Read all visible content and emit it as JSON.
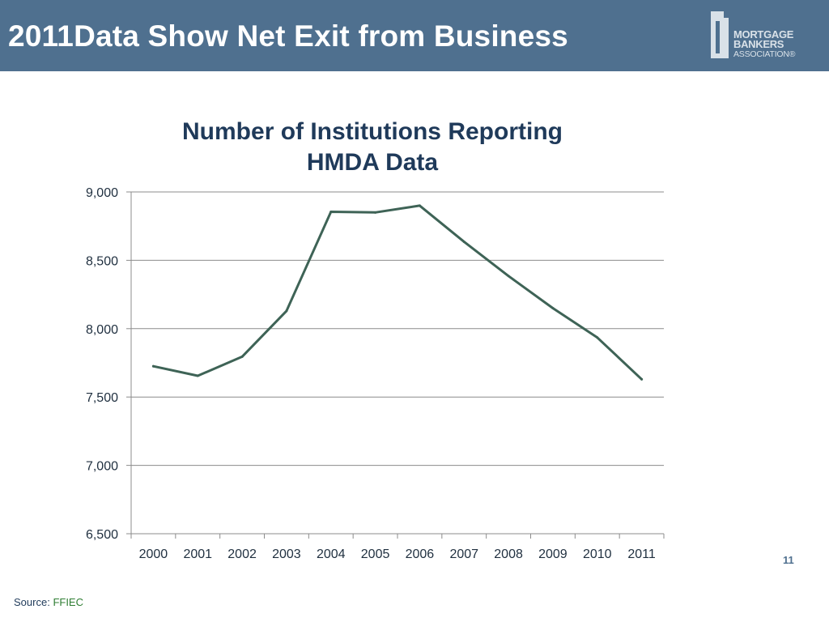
{
  "slide": {
    "title": "2011Data Show Net Exit from Business",
    "page_number": "11",
    "source_label": "Source:",
    "source_name": "FFIEC"
  },
  "logo": {
    "line1": "MORTGAGE",
    "line2": "BANKERS",
    "line3": "ASSOCIATION®"
  },
  "colors": {
    "header": "#4f708f",
    "line": "#3e6356",
    "grid": "#8c8c8c"
  },
  "chart_data": {
    "type": "line",
    "title_lines": [
      "Number of Institutions Reporting",
      "HMDA Data"
    ],
    "categories": [
      "2000",
      "2001",
      "2002",
      "2003",
      "2004",
      "2005",
      "2006",
      "2007",
      "2008",
      "2009",
      "2010",
      "2011"
    ],
    "series": [
      {
        "name": "Number of Institutions Reporting HMDA Data",
        "values": [
          7725,
          7655,
          7795,
          8130,
          8855,
          8850,
          8900,
          8635,
          8385,
          8150,
          7935,
          7630
        ]
      }
    ],
    "ylim": [
      6500,
      9000
    ],
    "yticks": [
      6500,
      7000,
      7500,
      8000,
      8500,
      9000
    ],
    "ytick_labels": [
      "6,500",
      "7,000",
      "7,500",
      "8,000",
      "8,500",
      "9,000"
    ],
    "grid": true,
    "legend": "none",
    "xlabel": "",
    "ylabel": ""
  }
}
